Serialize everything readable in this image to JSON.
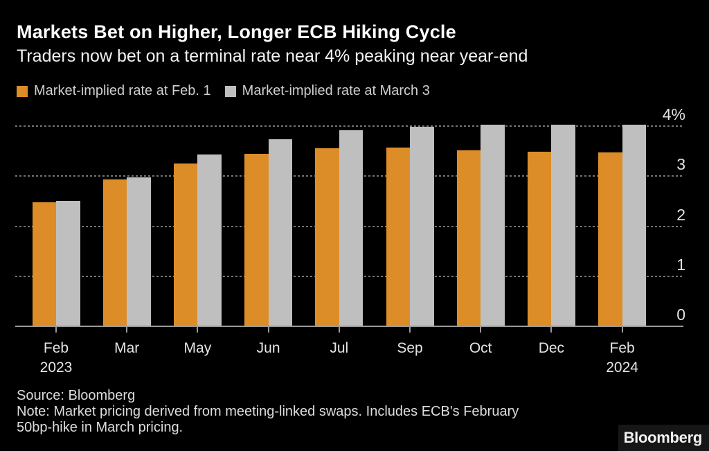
{
  "header": {
    "title": "Markets Bet on Higher, Longer ECB Hiking Cycle",
    "subtitle": "Traders now bet on a terminal rate near 4% peaking near year-end"
  },
  "legend": [
    {
      "label": "Market-implied rate at Feb. 1",
      "color": "#DD8D28"
    },
    {
      "label": "Market-implied rate at March 3",
      "color": "#BFBFBF"
    }
  ],
  "chart_data": {
    "type": "bar",
    "title": "Markets Bet on Higher, Longer ECB Hiking Cycle",
    "subtitle": "Traders now bet on a terminal rate near 4% peaking near year-end",
    "unit": "%",
    "categories": [
      {
        "label": "Feb",
        "sublabel": "2023"
      },
      {
        "label": "Mar",
        "sublabel": ""
      },
      {
        "label": "May",
        "sublabel": ""
      },
      {
        "label": "Jun",
        "sublabel": ""
      },
      {
        "label": "Jul",
        "sublabel": ""
      },
      {
        "label": "Sep",
        "sublabel": ""
      },
      {
        "label": "Oct",
        "sublabel": ""
      },
      {
        "label": "Dec",
        "sublabel": ""
      },
      {
        "label": "Feb",
        "sublabel": "2024"
      }
    ],
    "series": [
      {
        "name": "Market-implied rate at Feb. 1",
        "color": "#DD8D28",
        "values": [
          2.47,
          2.92,
          3.24,
          3.44,
          3.55,
          3.56,
          3.5,
          3.47,
          3.46
        ]
      },
      {
        "name": "Market-implied rate at March 3",
        "color": "#BFBFBF",
        "values": [
          2.5,
          2.96,
          3.42,
          3.73,
          3.9,
          3.97,
          4.01,
          4.02,
          4.01
        ]
      }
    ],
    "y_ticks": [
      {
        "value": 0,
        "label": "0"
      },
      {
        "value": 1,
        "label": "1"
      },
      {
        "value": 2,
        "label": "2"
      },
      {
        "value": 3,
        "label": "3"
      },
      {
        "value": 4,
        "label": "4%"
      }
    ],
    "ylim": [
      0,
      4.43
    ],
    "grid": "horizontal-dotted",
    "legend_position": "top-left",
    "y_axis_side": "right"
  },
  "footer": {
    "source": "Source: Bloomberg",
    "note_line1": "Note: Market pricing derived from meeting-linked swaps. Includes ECB's February",
    "note_line2": "50bp-hike in March pricing.",
    "logo": "Bloomberg"
  }
}
